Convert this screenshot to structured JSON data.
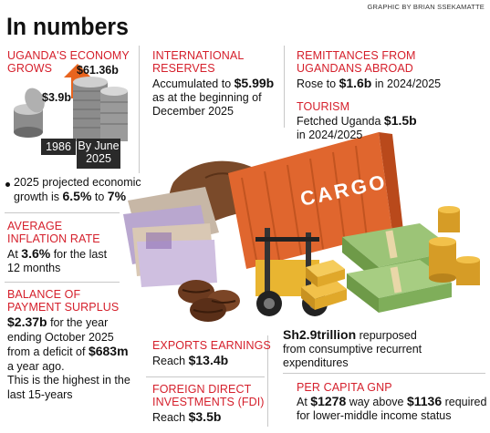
{
  "header": {
    "title": "In numbers",
    "credit": "GRAPHIC BY BRIAN SSEKAMATTE"
  },
  "economy": {
    "heading_line1": "UGANDA'S ECONOMY",
    "heading_line2": "GROWS",
    "value_1986": "$3.9b",
    "value_2025": "$61.36b",
    "year_1986": "1986",
    "year_2025_line1": "By June",
    "year_2025_line2": "2025",
    "projection_line1": "2025 projected economic",
    "projection_prefix": "growth is ",
    "projection_low": "6.5%",
    "projection_mid": " to ",
    "projection_high": "7%"
  },
  "inflation": {
    "heading_line1": "AVERAGE",
    "heading_line2": "INFLATION RATE",
    "prefix": "At ",
    "value": "3.6%",
    "suffix": " for the last",
    "line2": "12 months"
  },
  "payment_surplus": {
    "heading_line1": "BALANCE OF",
    "heading_line2": "PAYMENT SURPLUS",
    "value": "$2.37b",
    "suffix1": " for the year",
    "line2": "ending October 2025",
    "line3_prefix": "from a deficit of ",
    "deficit": "$683m",
    "line4": "a year ago.",
    "line5": "This is the highest in the",
    "line6": "last 15-years"
  },
  "reserves": {
    "heading_line1": "INTERNATIONAL",
    "heading_line2": "RESERVES",
    "prefix": "Accumulated to ",
    "value": "$5.99b",
    "line2": "as at the beginning of",
    "line3": "December 2025"
  },
  "remittances": {
    "heading_line1": "REMITTANCES FROM",
    "heading_line2": "UGANDANS ABROAD",
    "prefix": "Rose to ",
    "value": "$1.6b",
    "suffix": " in 2024/2025"
  },
  "tourism": {
    "heading": "TOURISM",
    "prefix": "Fetched Uganda ",
    "value": "$1.5b",
    "line2": "in 2024/2025"
  },
  "repurposed": {
    "value": "Sh2.9trillion",
    "suffix": " repurposed",
    "line2": "from consumptive recurrent",
    "line3": "expenditures"
  },
  "exports": {
    "heading": "EXPORTS EARNINGS",
    "prefix": "Reach ",
    "value": "$13.4b"
  },
  "fdi": {
    "heading_line1": "FOREIGN DIRECT",
    "heading_line2": "INVESTMENTS (FDI)",
    "prefix": "Reach ",
    "value": "$3.5b"
  },
  "gnp": {
    "heading": "PER CAPITA GNP",
    "prefix": "At ",
    "value": "$1278",
    "mid": " way above ",
    "threshold": "$1136",
    "suffix": " required",
    "line2": "for lower-middle income status"
  },
  "illustration": {
    "container_text": "CARGO"
  },
  "colors": {
    "accent_red": "#d5202c",
    "container_orange": "#e0662e",
    "arrow_orange": "#e8641e",
    "coin_silver": "#9a9a9a",
    "gold": "#e0a82a",
    "money_green": "#7fae5a"
  }
}
